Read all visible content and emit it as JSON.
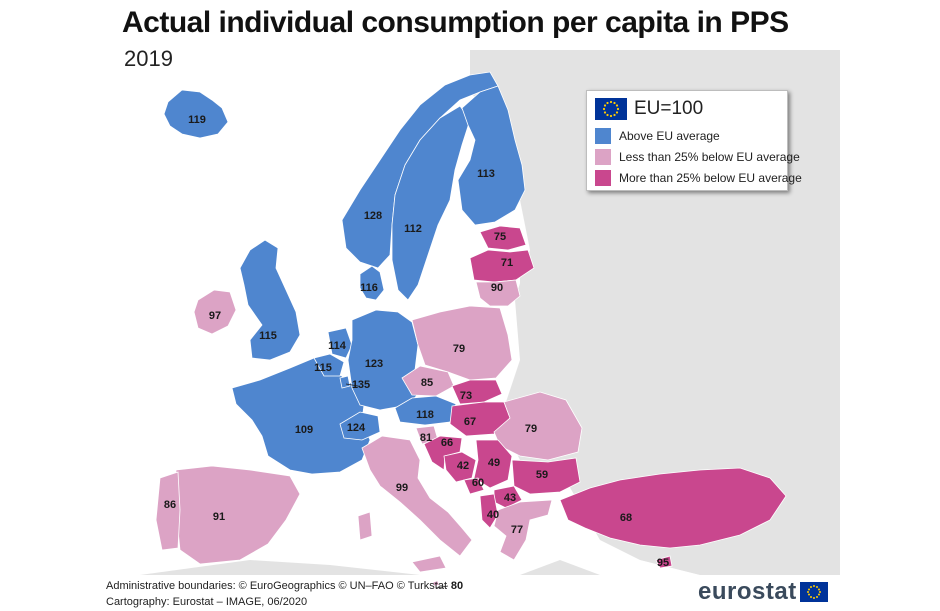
{
  "title": "Actual individual consumption per capita in PPS",
  "subtitle": "2019",
  "legend": {
    "reference": "EU=100",
    "items": [
      {
        "label": "Above EU average",
        "color": "#4f86cf"
      },
      {
        "label": "Less than 25% below EU average",
        "color": "#dca3c5"
      },
      {
        "label": "More than 25% below EU average",
        "color": "#c9478e"
      }
    ]
  },
  "colors": {
    "background_land": "#e3e3e3",
    "sea": "#ffffff",
    "above": "#4f86cf",
    "less_below": "#dca3c5",
    "more_below": "#c9478e"
  },
  "values": {
    "iceland": "119",
    "norway": "128",
    "sweden": "112",
    "finland": "113",
    "estonia": "75",
    "latvia": "71",
    "lithuania": "90",
    "denmark": "116",
    "ireland": "97",
    "uk": "115",
    "netherlands": "114",
    "belgium": "115",
    "luxembourg": "135",
    "germany": "123",
    "poland": "79",
    "czechia": "85",
    "slovakia": "73",
    "hungary": "67",
    "austria": "118",
    "switzerland": "124",
    "france": "109",
    "slovenia": "81",
    "croatia": "66",
    "romania": "79",
    "bosnia": "42",
    "serbia": "49",
    "montenegro": "60",
    "bulgaria": "59",
    "north_macedonia": "43",
    "albania": "40",
    "greece": "77",
    "turkey": "68",
    "italy": "99",
    "portugal": "86",
    "spain": "91",
    "cyprus": "95",
    "malta": "80"
  },
  "footer": {
    "line1": "Administrative boundaries: © EuroGeographics © UN–FAO © Turkstat",
    "line2": "Cartography: Eurostat – IMAGE, 06/2020"
  },
  "logo": "eurostat"
}
